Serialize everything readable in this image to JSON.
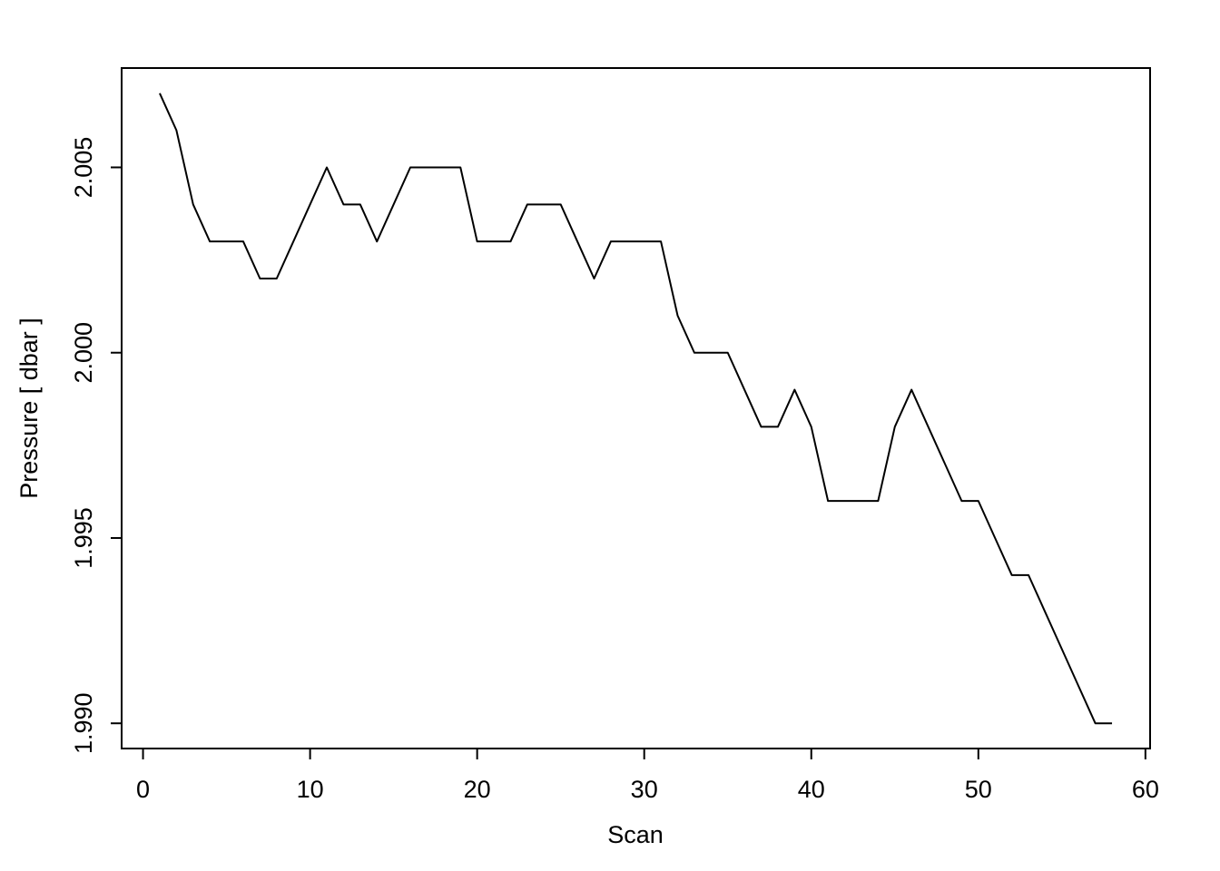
{
  "chart_data": {
    "type": "line",
    "x_label": "Scan",
    "y_label": "Pressure [ dbar ]",
    "x": [
      1,
      2,
      3,
      4,
      5,
      6,
      7,
      8,
      9,
      10,
      11,
      12,
      13,
      14,
      15,
      16,
      17,
      18,
      19,
      20,
      21,
      22,
      23,
      24,
      25,
      26,
      27,
      28,
      29,
      30,
      31,
      32,
      33,
      34,
      35,
      36,
      37,
      38,
      39,
      40,
      41,
      42,
      43,
      44,
      45,
      46,
      47,
      48,
      49,
      50,
      51,
      52,
      53,
      54,
      55,
      56,
      57,
      58
    ],
    "series": [
      {
        "color": "#000000",
        "values": [
          2.007,
          2.006,
          2.004,
          2.003,
          2.003,
          2.003,
          2.002,
          2.002,
          2.003,
          2.004,
          2.005,
          2.004,
          2.004,
          2.003,
          2.004,
          2.005,
          2.005,
          2.005,
          2.005,
          2.003,
          2.003,
          2.003,
          2.004,
          2.004,
          2.004,
          2.003,
          2.002,
          2.003,
          2.003,
          2.003,
          2.003,
          2.001,
          2.0,
          2.0,
          2.0,
          1.999,
          1.998,
          1.998,
          1.999,
          1.998,
          1.996,
          1.996,
          1.996,
          1.996,
          1.998,
          1.999,
          1.998,
          1.997,
          1.996,
          1.996,
          1.995,
          1.994,
          1.994,
          1.993,
          1.992,
          1.991,
          1.99,
          1.99
        ]
      }
    ],
    "xlim": [
      -1.28,
      60.28
    ],
    "ylim": [
      1.98932,
      2.00768
    ],
    "xticks": [
      0,
      10,
      20,
      30,
      40,
      50,
      60
    ],
    "yticks": [
      {
        "value": 1.99,
        "label": "1.990"
      },
      1.995,
      {
        "value": 2.0,
        "label": "2.000"
      },
      2.005
    ]
  }
}
